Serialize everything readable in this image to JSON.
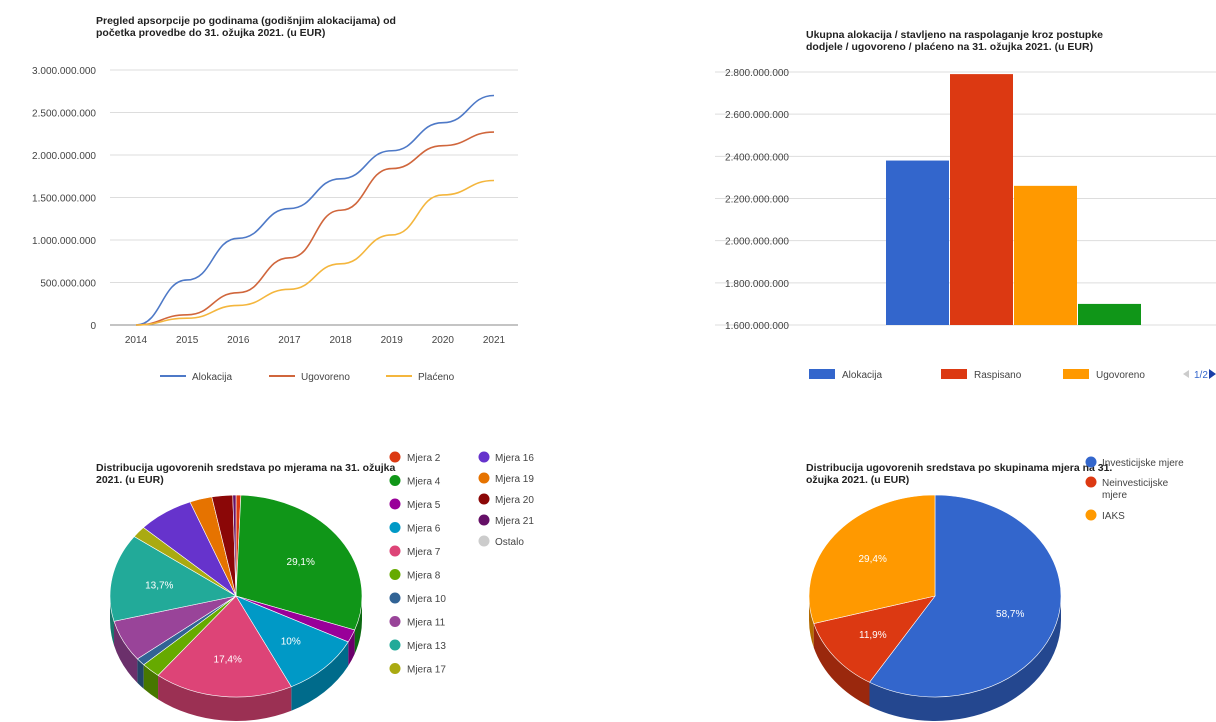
{
  "colors": {
    "blue": "#3366cc",
    "red": "#dc3912",
    "orange": "#ff9900",
    "green": "#109618",
    "line_blue": "#4e79c7",
    "line_red": "#d0663c",
    "line_orange": "#f4b63d",
    "grid": "#dddddd",
    "axis_text": "#444444"
  },
  "chart_data": [
    {
      "id": "absorption",
      "type": "line",
      "title": "Pregled apsorpcije po godinama (godišnjim alokacijama) od\npočetka provedbe do 31. ožujka 2021. (u EUR)",
      "x": [
        "2014",
        "2015",
        "2016",
        "2017",
        "2018",
        "2019",
        "2020",
        "2021"
      ],
      "yticks": [
        "3.000.000.000",
        "2.500.000.000",
        "2.000.000.000",
        "1.500.000.000",
        "1.000.000.000",
        "500.000.000",
        "0"
      ],
      "ylim": [
        0,
        3000000000
      ],
      "grid": true,
      "legend_position": "bottom",
      "series": [
        {
          "name": "Alokacija",
          "values": [
            0,
            530000000,
            1020000000,
            1370000000,
            1720000000,
            2050000000,
            2380000000,
            2700000000
          ]
        },
        {
          "name": "Ugovoreno",
          "values": [
            0,
            120000000,
            380000000,
            790000000,
            1350000000,
            1840000000,
            2110000000,
            2270000000
          ]
        },
        {
          "name": "Plaćeno",
          "values": [
            0,
            80000000,
            230000000,
            420000000,
            720000000,
            1060000000,
            1530000000,
            1700000000
          ]
        }
      ]
    },
    {
      "id": "totals",
      "type": "bar",
      "title": "Ukupna alokacija / stavljeno na raspolaganje kroz postupke\ndodjele / ugovoreno / plaćeno na 31. ožujka 2021. (u EUR)",
      "yticks": [
        "2.800.000.000",
        "2.600.000.000",
        "2.400.000.000",
        "2.200.000.000",
        "2.000.000.000",
        "1.800.000.000",
        "1.600.000.000"
      ],
      "ylim": [
        1600000000,
        2800000000
      ],
      "grid": true,
      "legend_position": "bottom",
      "legend_page": "1/2",
      "series": [
        {
          "name": "Alokacija",
          "value": 2380000000
        },
        {
          "name": "Raspisano",
          "value": 2790000000
        },
        {
          "name": "Ugovoreno",
          "value": 2260000000
        },
        {
          "name": "",
          "value": 1700000000
        }
      ]
    },
    {
      "id": "by_measure",
      "type": "pie",
      "title": "Distribucija ugovorenih sredstava po mjerama na 31. ožujka\n2021. (u EUR)",
      "legend_position": "right",
      "slices": [
        {
          "label": "Mjera 2",
          "value": 0.6,
          "color": "#dc3912"
        },
        {
          "label": "Mjera 4",
          "value": 29.1,
          "color": "#109618",
          "data_label": "29,1%"
        },
        {
          "label": "Mjera 5",
          "value": 2.0,
          "color": "#990099"
        },
        {
          "label": "Mjera 6",
          "value": 10.0,
          "color": "#0099c6",
          "data_label": "10%"
        },
        {
          "label": "Mjera 7",
          "value": 17.4,
          "color": "#dd4477",
          "data_label": "17,4%"
        },
        {
          "label": "Mjera 8",
          "value": 2.4,
          "color": "#66aa00"
        },
        {
          "label": "Mjera 10",
          "value": 1.2,
          "color": "#316395"
        },
        {
          "label": "Mjera 11",
          "value": 6.5,
          "color": "#994499"
        },
        {
          "label": "Mjera 13",
          "value": 13.7,
          "color": "#22aa99",
          "data_label": "13,7%"
        },
        {
          "label": "Mjera 17",
          "value": 1.8,
          "color": "#aaaa11"
        },
        {
          "label": "Mjera 16",
          "value": 7.0,
          "color": "#6633cc"
        },
        {
          "label": "Mjera 19",
          "value": 2.8,
          "color": "#e67300"
        },
        {
          "label": "Mjera 20",
          "value": 2.6,
          "color": "#8b0707"
        },
        {
          "label": "Mjera 21",
          "value": 0.4,
          "color": "#651067"
        },
        {
          "label": "Ostalo",
          "value": 0.0,
          "color": "#cccccc"
        }
      ]
    },
    {
      "id": "by_group",
      "type": "pie",
      "title": "Distribucija ugovorenih sredstava po skupinama mjera na 31.\nožujka 2021. (u EUR)",
      "legend_position": "right",
      "slices": [
        {
          "label": "Investicijske mjere",
          "value": 58.7,
          "color": "#3366cc",
          "data_label": "58,7%"
        },
        {
          "label": "Neinvesticijske mjere",
          "value": 11.9,
          "color": "#dc3912",
          "data_label": "11,9%"
        },
        {
          "label": "IAKS",
          "value": 29.4,
          "color": "#ff9900",
          "data_label": "29,4%"
        }
      ]
    }
  ]
}
